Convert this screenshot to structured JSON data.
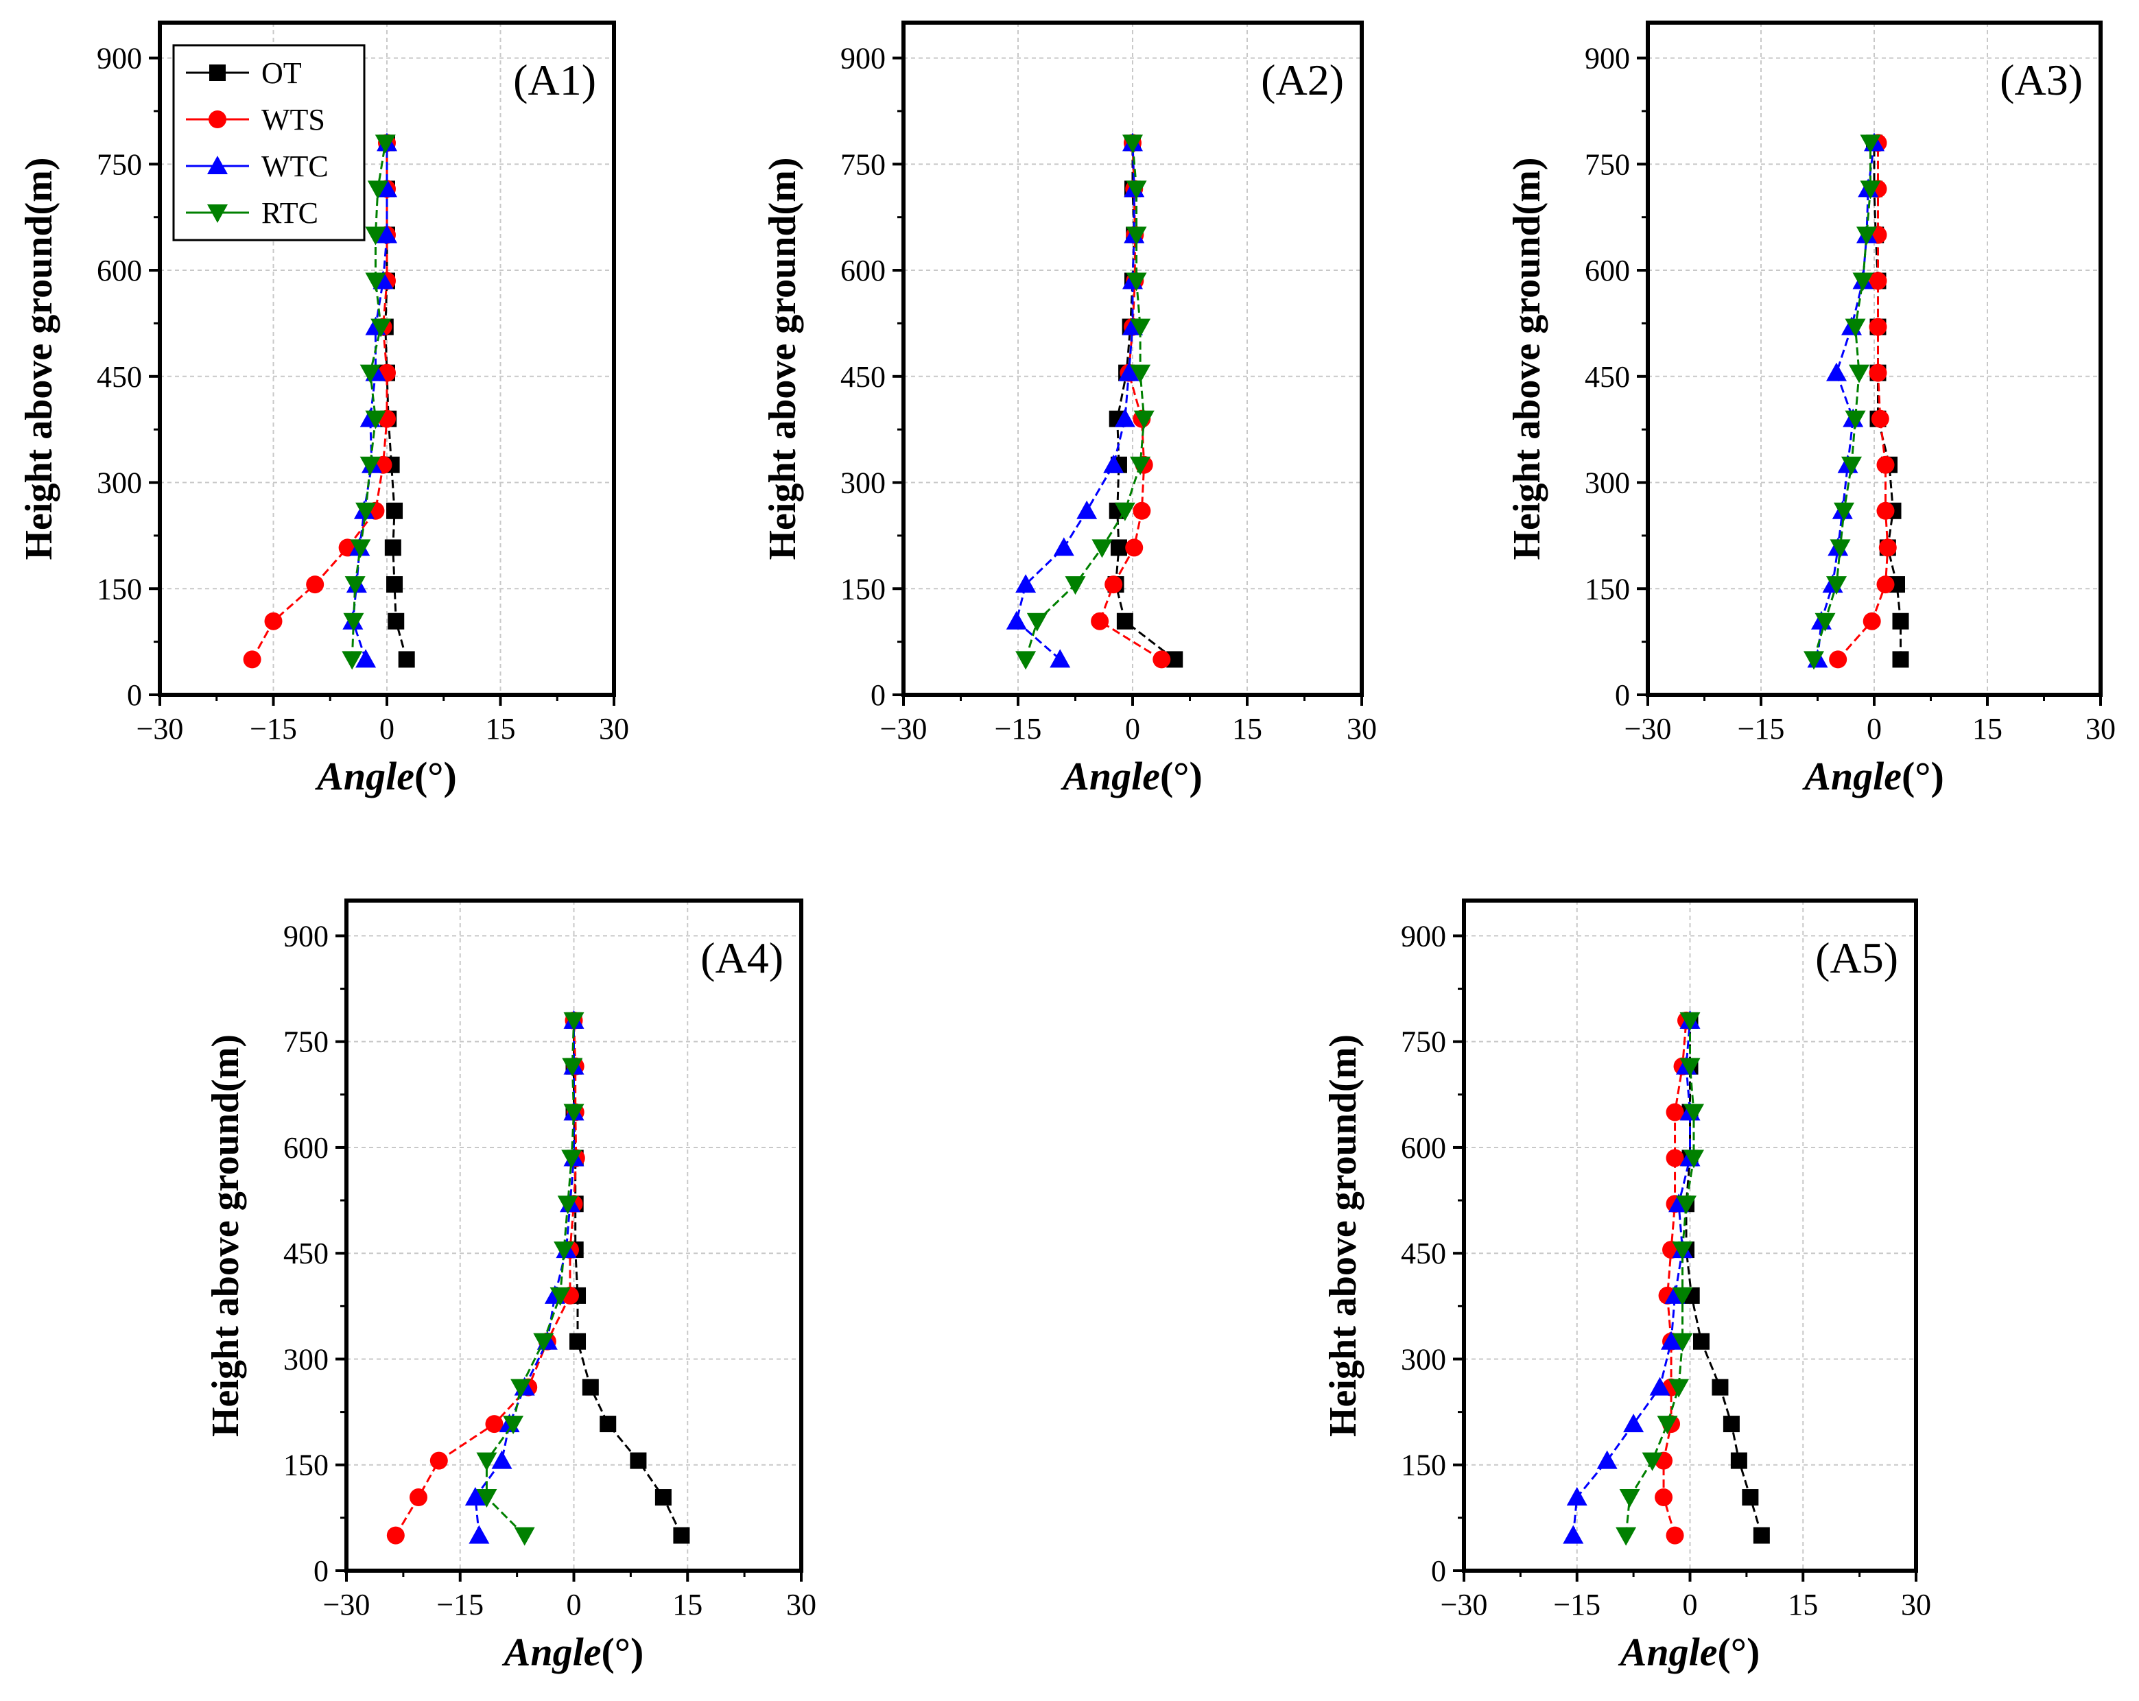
{
  "legend": {
    "entries": [
      {
        "name": "OT",
        "color": "#000000",
        "marker": "square"
      },
      {
        "name": "WTS",
        "color": "#ff0000",
        "marker": "circle"
      },
      {
        "name": "WTC",
        "color": "#0000ff",
        "marker": "triangle-up"
      },
      {
        "name": "RTC",
        "color": "#008000",
        "marker": "triangle-down"
      }
    ]
  },
  "chart_data": [
    {
      "type": "line",
      "panel_label": "(A1)",
      "xlabel_main": "Angle",
      "xlabel_unit": "(°)",
      "ylabel": "Height above ground(m)",
      "xlim": [
        -30,
        30
      ],
      "ylim": [
        0,
        950
      ],
      "xticks": [
        -30,
        -15,
        0,
        15,
        30
      ],
      "yticks": [
        0,
        150,
        300,
        450,
        600,
        750,
        900
      ],
      "grid": true,
      "legend": true,
      "y": [
        50,
        104,
        156,
        208,
        260,
        325,
        390,
        455,
        520,
        585,
        650,
        715,
        780
      ],
      "series": [
        {
          "name": "OT",
          "values": [
            2.6,
            1.2,
            1.0,
            0.8,
            1.0,
            0.6,
            0.2,
            0.0,
            -0.2,
            0.0,
            0.0,
            0.0,
            0.0
          ]
        },
        {
          "name": "WTS",
          "values": [
            -17.8,
            -15.0,
            -9.5,
            -5.2,
            -1.5,
            -0.5,
            0.0,
            0.0,
            -0.5,
            0.0,
            0.0,
            0.0,
            0.0
          ]
        },
        {
          "name": "WTC",
          "values": [
            -2.8,
            -4.5,
            -4.0,
            -3.6,
            -3.0,
            -2.0,
            -2.2,
            -1.5,
            -1.5,
            -0.5,
            0.0,
            0.0,
            0.0
          ]
        },
        {
          "name": "RTC",
          "values": [
            -4.6,
            -4.4,
            -4.2,
            -3.5,
            -2.8,
            -2.2,
            -1.5,
            -2.2,
            -0.8,
            -1.5,
            -1.5,
            -1.2,
            -0.2
          ]
        }
      ]
    },
    {
      "type": "line",
      "panel_label": "(A2)",
      "xlabel_main": "Angle",
      "xlabel_unit": "(°)",
      "ylabel": "Height above ground(m)",
      "xlim": [
        -30,
        30
      ],
      "ylim": [
        0,
        950
      ],
      "xticks": [
        -30,
        -15,
        0,
        15,
        30
      ],
      "yticks": [
        0,
        150,
        300,
        450,
        600,
        750,
        900
      ],
      "grid": true,
      "legend": false,
      "y": [
        50,
        104,
        156,
        208,
        260,
        325,
        390,
        455,
        520,
        585,
        650,
        715,
        780
      ],
      "series": [
        {
          "name": "OT",
          "values": [
            5.5,
            -1.0,
            -2.2,
            -1.8,
            -2.0,
            -1.8,
            -2.0,
            -0.8,
            -0.3,
            0.0,
            0.2,
            0.0,
            0.0
          ]
        },
        {
          "name": "WTS",
          "values": [
            3.8,
            -4.3,
            -2.5,
            0.2,
            1.2,
            1.5,
            1.2,
            -0.5,
            0.0,
            0.3,
            0.3,
            0.2,
            0.0
          ]
        },
        {
          "name": "WTC",
          "values": [
            -9.5,
            -15.2,
            -14.0,
            -9.0,
            -6.0,
            -2.5,
            -1.0,
            -0.5,
            0.0,
            0.0,
            0.2,
            0.2,
            0.0
          ]
        },
        {
          "name": "RTC",
          "values": [
            -14.0,
            -12.5,
            -7.5,
            -4.0,
            -1.0,
            1.0,
            1.5,
            1.0,
            1.0,
            0.5,
            0.5,
            0.5,
            0.0
          ]
        }
      ]
    },
    {
      "type": "line",
      "panel_label": "(A3)",
      "xlabel_main": "Angle",
      "xlabel_unit": "(°)",
      "ylabel": "Height above ground(m)",
      "xlim": [
        -30,
        30
      ],
      "ylim": [
        0,
        950
      ],
      "xticks": [
        -30,
        -15,
        0,
        15,
        30
      ],
      "yticks": [
        0,
        150,
        300,
        450,
        600,
        750,
        900
      ],
      "grid": true,
      "legend": false,
      "y": [
        50,
        104,
        156,
        208,
        260,
        325,
        390,
        455,
        520,
        585,
        650,
        715,
        780
      ],
      "series": [
        {
          "name": "OT",
          "values": [
            3.5,
            3.5,
            3.0,
            1.8,
            2.5,
            2.0,
            0.5,
            0.5,
            0.5,
            0.5,
            0.2,
            0.0,
            0.0
          ]
        },
        {
          "name": "WTS",
          "values": [
            -4.8,
            -0.3,
            1.5,
            1.8,
            1.5,
            1.5,
            0.8,
            0.5,
            0.5,
            0.5,
            0.5,
            0.5,
            0.5
          ]
        },
        {
          "name": "WTC",
          "values": [
            -7.5,
            -7.0,
            -5.5,
            -4.8,
            -4.2,
            -3.5,
            -2.8,
            -5.0,
            -3.0,
            -1.5,
            -1.0,
            -0.8,
            0.0
          ]
        },
        {
          "name": "RTC",
          "values": [
            -8.0,
            -6.5,
            -5.0,
            -4.5,
            -4.0,
            -3.0,
            -2.5,
            -2.0,
            -2.5,
            -1.5,
            -1.0,
            -0.5,
            -0.5
          ]
        }
      ]
    },
    {
      "type": "line",
      "panel_label": "(A4)",
      "xlabel_main": "Angle",
      "xlabel_unit": "(°)",
      "ylabel": "Height above ground(m)",
      "xlim": [
        -30,
        30
      ],
      "ylim": [
        0,
        950
      ],
      "xticks": [
        -30,
        -15,
        0,
        15,
        30
      ],
      "yticks": [
        0,
        150,
        300,
        450,
        600,
        750,
        900
      ],
      "grid": true,
      "legend": false,
      "y": [
        50,
        104,
        156,
        208,
        260,
        325,
        390,
        455,
        520,
        585,
        650,
        715,
        780
      ],
      "series": [
        {
          "name": "OT",
          "values": [
            14.2,
            11.8,
            8.5,
            4.5,
            2.2,
            0.5,
            0.5,
            0.2,
            0.2,
            0.2,
            0.0,
            0.0,
            0.0
          ]
        },
        {
          "name": "WTS",
          "values": [
            -23.5,
            -20.5,
            -17.8,
            -10.5,
            -6.0,
            -3.5,
            -0.5,
            -0.5,
            0.0,
            0.3,
            0.2,
            0.2,
            0.0
          ]
        },
        {
          "name": "WTC",
          "values": [
            -12.5,
            -13.0,
            -9.5,
            -8.5,
            -6.5,
            -3.5,
            -2.5,
            -1.0,
            -0.5,
            0.0,
            0.0,
            0.0,
            0.0
          ]
        },
        {
          "name": "RTC",
          "values": [
            -6.5,
            -11.5,
            -11.5,
            -8.0,
            -7.0,
            -4.0,
            -1.8,
            -1.3,
            -0.8,
            -0.3,
            0.0,
            -0.2,
            0.0
          ]
        }
      ]
    },
    {
      "type": "line",
      "panel_label": "(A5)",
      "xlabel_main": "Angle",
      "xlabel_unit": "(°)",
      "ylabel": "Height above ground(m)",
      "xlim": [
        -30,
        30
      ],
      "ylim": [
        0,
        950
      ],
      "xticks": [
        -30,
        -15,
        0,
        15,
        30
      ],
      "yticks": [
        0,
        150,
        300,
        450,
        600,
        750,
        900
      ],
      "grid": true,
      "legend": false,
      "y": [
        50,
        104,
        156,
        208,
        260,
        325,
        390,
        455,
        520,
        585,
        650,
        715,
        780
      ],
      "series": [
        {
          "name": "OT",
          "values": [
            9.5,
            8.0,
            6.5,
            5.5,
            4.0,
            1.5,
            0.2,
            -0.5,
            -0.5,
            0.0,
            0.0,
            0.0,
            0.0
          ]
        },
        {
          "name": "WTS",
          "values": [
            -2.0,
            -3.5,
            -3.5,
            -2.5,
            -2.5,
            -2.5,
            -3.0,
            -2.5,
            -2.0,
            -2.0,
            -2.0,
            -1.0,
            -0.5
          ]
        },
        {
          "name": "WTC",
          "values": [
            -15.5,
            -15.0,
            -11.0,
            -7.5,
            -4.0,
            -2.5,
            -2.0,
            -1.0,
            -1.5,
            0.0,
            0.0,
            -0.5,
            0.0
          ]
        },
        {
          "name": "RTC",
          "values": [
            -8.5,
            -8.0,
            -5.0,
            -3.0,
            -1.5,
            -1.0,
            -1.0,
            -1.0,
            -0.5,
            0.5,
            0.5,
            0.0,
            0.0
          ]
        }
      ]
    }
  ]
}
